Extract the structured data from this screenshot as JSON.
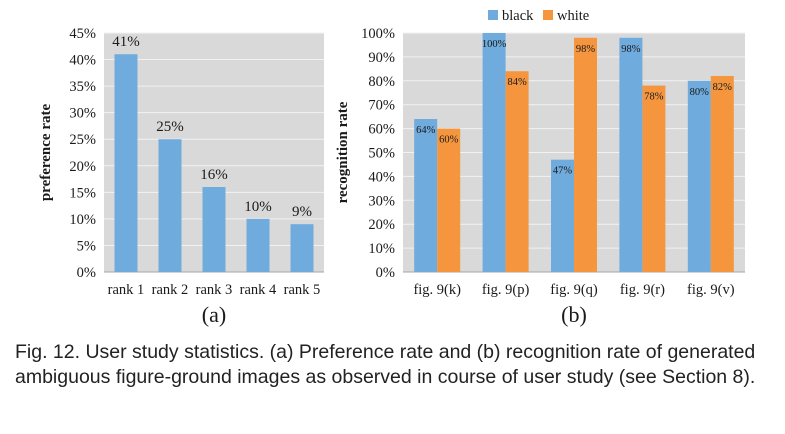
{
  "chart_data": [
    {
      "type": "bar",
      "panel_label": "(a)",
      "categories": [
        "rank 1",
        "rank 2",
        "rank 3",
        "rank 4",
        "rank 5"
      ],
      "values": [
        41,
        25,
        16,
        10,
        9
      ],
      "data_labels": [
        "41%",
        "25%",
        "16%",
        "10%",
        "9%"
      ],
      "ylabel": "preference rate",
      "ylim": [
        0,
        45
      ],
      "yticks": [
        "0%",
        "5%",
        "10%",
        "15%",
        "20%",
        "25%",
        "30%",
        "35%",
        "40%",
        "45%"
      ],
      "grid": true,
      "bar_color": "#6fabdc"
    },
    {
      "type": "bar",
      "panel_label": "(b)",
      "categories": [
        "fig. 9(k)",
        "fig. 9(p)",
        "fig. 9(q)",
        "fig. 9(r)",
        "fig. 9(v)"
      ],
      "series": [
        {
          "name": "black",
          "values": [
            64,
            100,
            47,
            98,
            80
          ],
          "data_labels": [
            "64%",
            "100%",
            "47%",
            "98%",
            "80%"
          ],
          "color": "#6fabdc"
        },
        {
          "name": "white",
          "values": [
            60,
            84,
            98,
            78,
            82
          ],
          "data_labels": [
            "60%",
            "84%",
            "98%",
            "78%",
            "82%"
          ],
          "color": "#f5963f"
        }
      ],
      "ylabel": "recognition rate",
      "ylim": [
        0,
        100
      ],
      "yticks": [
        "0%",
        "10%",
        "20%",
        "30%",
        "40%",
        "50%",
        "60%",
        "70%",
        "80%",
        "90%",
        "100%"
      ],
      "grid": true,
      "legend": "top"
    }
  ],
  "caption": "Fig. 12. User study statistics. (a) Preference rate and (b) recognition rate of generated ambiguous figure-ground images as observed in course of user study (see Section 8)."
}
